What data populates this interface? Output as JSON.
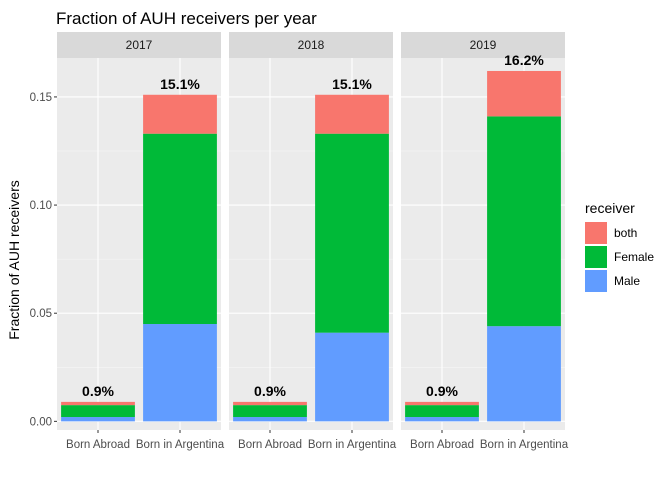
{
  "chart_data": {
    "type": "bar",
    "stacked": true,
    "title": "Fraction of AUH receivers per year",
    "xlabel": "",
    "ylabel": "Fraction of AUH receivers",
    "ylim": [
      -0.004,
      0.168
    ],
    "yticks": [
      "0.00",
      "0.05",
      "0.10",
      "0.15"
    ],
    "ytick_values": [
      0,
      0.05,
      0.1,
      0.15
    ],
    "grid": true,
    "legend_position": "right",
    "legend": {
      "title": "receiver",
      "entries": [
        {
          "label": "both",
          "color": "#F8766D"
        },
        {
          "label": "Female",
          "color": "#00BA38"
        },
        {
          "label": "Male",
          "color": "#619CFF"
        }
      ]
    },
    "categories": [
      "Born Abroad",
      "Born in Argentina"
    ],
    "facets": [
      {
        "panel": "2017",
        "totals_labels": [
          "0.9%",
          "15.1%"
        ],
        "series": [
          {
            "name": "Male",
            "values": [
              0.002,
              0.045
            ]
          },
          {
            "name": "Female",
            "values": [
              0.0055,
              0.088
            ]
          },
          {
            "name": "both",
            "values": [
              0.0015,
              0.018
            ]
          }
        ]
      },
      {
        "panel": "2018",
        "totals_labels": [
          "0.9%",
          "15.1%"
        ],
        "series": [
          {
            "name": "Male",
            "values": [
              0.002,
              0.041
            ]
          },
          {
            "name": "Female",
            "values": [
              0.0055,
              0.092
            ]
          },
          {
            "name": "both",
            "values": [
              0.0015,
              0.018
            ]
          }
        ]
      },
      {
        "panel": "2019",
        "totals_labels": [
          "0.9%",
          "16.2%"
        ],
        "series": [
          {
            "name": "Male",
            "values": [
              0.002,
              0.044
            ]
          },
          {
            "name": "Female",
            "values": [
              0.0055,
              0.097
            ]
          },
          {
            "name": "both",
            "values": [
              0.0015,
              0.021
            ]
          }
        ]
      }
    ]
  }
}
